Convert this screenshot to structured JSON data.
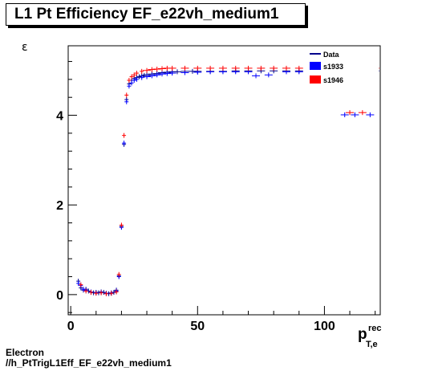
{
  "title": "L1 Pt Efficiency EF_e22vh_medium1",
  "ylabel": "ε",
  "xlabel_main": "p",
  "xlabel_sup": "rec",
  "xlabel_sub": "T,e",
  "footer": {
    "line1": "Electron",
    "line2": "//h_PtTrigL1Eff_EF_e22vh_medium1"
  },
  "colors": {
    "data": "#00008b",
    "s1933": "#0000ff",
    "s1946": "#ff0000"
  },
  "chart_data": {
    "type": "scatter",
    "xlim": [
      -1,
      122
    ],
    "ylim": [
      -0.45,
      5.55
    ],
    "x_ticks": [
      0,
      50,
      100
    ],
    "y_ticks": [
      0,
      2,
      4
    ],
    "legend": [
      "Data",
      "s1933",
      "s1946"
    ],
    "legend_position": "top-right",
    "series": [
      {
        "name": "Data",
        "x": [
          3,
          4,
          5,
          6,
          7,
          8,
          9,
          10,
          11,
          12,
          13,
          14,
          15,
          16,
          17,
          18,
          19,
          20,
          21,
          22,
          23,
          24,
          25,
          26,
          27,
          28,
          29,
          30,
          32,
          34,
          36,
          38,
          40,
          42,
          45,
          48,
          50,
          55,
          60,
          65,
          70,
          75,
          80,
          85,
          90,
          95,
          100,
          105,
          110,
          115,
          120
        ],
        "y": [
          0.3,
          0.15,
          0.1,
          0.12,
          0.08,
          0.05,
          0.04,
          0.05,
          0.04,
          0.06,
          0.05,
          0.03,
          0.02,
          0.03,
          0.05,
          0.1,
          0.42,
          1.52,
          3.35,
          4.35,
          4.7,
          4.78,
          4.82,
          4.84,
          4.86,
          4.88,
          4.89,
          4.9,
          4.92,
          4.93,
          4.95,
          4.96,
          4.97,
          4.97,
          4.98,
          4.98,
          4.98,
          4.98,
          4.98,
          4.99,
          4.99,
          4.99,
          4.99,
          4.99,
          4.99,
          4.99,
          4.99,
          4.99,
          4.99,
          4.99,
          4.99
        ]
      },
      {
        "name": "s1933",
        "x": [
          3,
          4,
          5,
          6,
          8,
          10,
          12,
          14,
          16,
          18,
          19,
          20,
          21,
          22,
          23,
          24,
          25,
          26,
          28,
          30,
          32,
          34,
          36,
          38,
          40,
          45,
          50,
          55,
          60,
          65,
          70,
          73,
          78,
          85,
          90,
          95,
          100,
          108,
          112,
          118
        ],
        "y": [
          0.25,
          0.2,
          0.12,
          0.1,
          0.06,
          0.04,
          0.05,
          0.03,
          0.04,
          0.08,
          0.4,
          1.5,
          3.38,
          4.3,
          4.65,
          4.72,
          4.78,
          4.8,
          4.84,
          4.86,
          4.88,
          4.9,
          4.92,
          4.93,
          4.94,
          4.95,
          4.96,
          4.97,
          4.97,
          4.97,
          4.97,
          4.88,
          4.9,
          4.97,
          4.97,
          4.97,
          4.97,
          4.01,
          4.01,
          4.01
        ]
      },
      {
        "name": "s1946",
        "x": [
          4,
          6,
          8,
          10,
          12,
          14,
          16,
          18,
          19,
          20,
          21,
          22,
          23,
          24,
          25,
          26,
          28,
          30,
          32,
          34,
          36,
          38,
          40,
          45,
          50,
          55,
          60,
          65,
          70,
          75,
          80,
          85,
          90,
          95,
          100,
          110,
          115,
          120
        ],
        "y": [
          0.22,
          0.08,
          0.05,
          0.03,
          0.04,
          0.02,
          0.03,
          0.06,
          0.45,
          1.55,
          3.55,
          4.45,
          4.78,
          4.86,
          4.9,
          4.94,
          4.98,
          5.0,
          5.02,
          5.03,
          5.04,
          5.05,
          5.05,
          5.05,
          5.05,
          5.05,
          5.05,
          5.05,
          5.05,
          5.05,
          5.05,
          5.05,
          5.05,
          5.05,
          5.05,
          4.06,
          4.06,
          5.05
        ]
      }
    ]
  }
}
